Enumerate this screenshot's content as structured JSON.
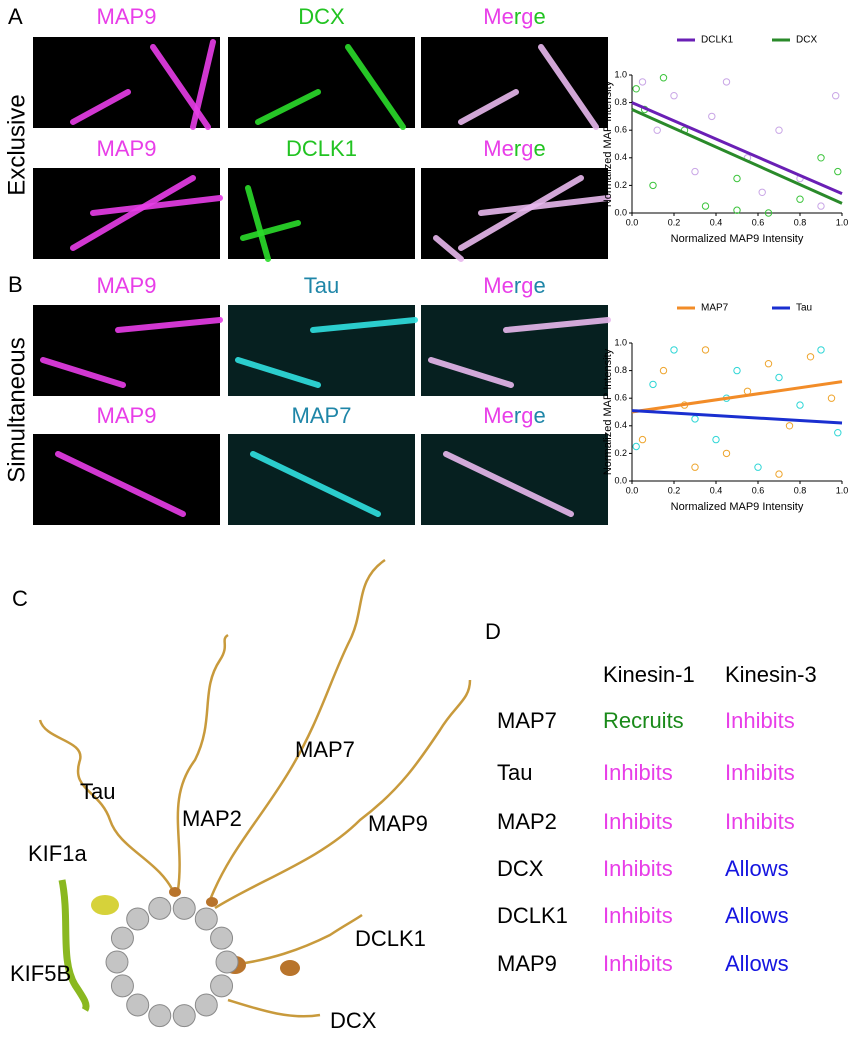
{
  "panel_a": {
    "label": "A",
    "condition": "Exclusive",
    "rows": [
      {
        "labels": [
          "MAP9",
          "DCX",
          "Merge"
        ],
        "colors": [
          "#e83ee8",
          "#22c322"
        ]
      },
      {
        "labels": [
          "MAP9",
          "DCLK1",
          "Merge"
        ],
        "colors": [
          "#e83ee8",
          "#22c322"
        ]
      }
    ]
  },
  "panel_b": {
    "label": "B",
    "condition": "Simultaneous",
    "rows": [
      {
        "labels": [
          "MAP9",
          "Tau",
          "Merge"
        ],
        "colors": [
          "#e83ee8",
          "#1f86a8"
        ]
      },
      {
        "labels": [
          "MAP9",
          "MAP7",
          "Merge"
        ],
        "colors": [
          "#e83ee8",
          "#1f86a8"
        ]
      }
    ]
  },
  "chart_data": [
    {
      "type": "scatter",
      "xlabel": "Normalized MAP9 Intensity",
      "ylabel": "Normalized MAP Intensity",
      "xlim": [
        0,
        1
      ],
      "ylim": [
        0,
        1
      ],
      "xticks": [
        {
          "value": 0,
          "label": "0.0"
        },
        0.2,
        0.4,
        0.6,
        0.8,
        {
          "value": 1,
          "label": "1.0"
        }
      ],
      "yticks": [
        {
          "value": 0,
          "label": "0.0"
        },
        0.2,
        0.4,
        0.6,
        0.8,
        {
          "value": 1,
          "label": "1.0"
        }
      ],
      "legend": "top",
      "series": [
        {
          "name": "DCLK1",
          "color": "#6a1fb5",
          "point_color": "#c9a6e6",
          "x": [
            0.05,
            0.12,
            0.2,
            0.3,
            0.38,
            0.45,
            0.55,
            0.62,
            0.7,
            0.8,
            0.9,
            0.97
          ],
          "values": [
            0.95,
            0.6,
            0.85,
            0.3,
            0.7,
            0.95,
            0.4,
            0.15,
            0.6,
            0.25,
            0.05,
            0.85
          ],
          "trend": [
            0.8,
            0.14
          ]
        },
        {
          "name": "DCX",
          "color": "#2a8a2a",
          "point_color": "#3cc43c",
          "x": [
            0.02,
            0.06,
            0.1,
            0.15,
            0.25,
            0.35,
            0.5,
            0.65,
            0.8,
            0.9,
            0.98,
            0.5
          ],
          "values": [
            0.9,
            0.75,
            0.2,
            0.98,
            0.6,
            0.05,
            0.25,
            0.0,
            0.1,
            0.4,
            0.3,
            0.02
          ],
          "trend": [
            0.75,
            0.07
          ]
        }
      ]
    },
    {
      "type": "scatter",
      "xlabel": "Normalized MAP9 Intensity",
      "ylabel": "Normalized MAP Intensity",
      "xlim": [
        0,
        1
      ],
      "ylim": [
        0,
        1
      ],
      "xticks": [
        {
          "value": 0,
          "label": "0.0"
        },
        0.2,
        0.4,
        0.6,
        0.8,
        {
          "value": 1,
          "label": "1.0"
        }
      ],
      "yticks": [
        {
          "value": 0,
          "label": "0.0"
        },
        0.2,
        0.4,
        0.6,
        0.8,
        {
          "value": 1,
          "label": "1.0"
        }
      ],
      "legend": "top",
      "series": [
        {
          "name": "MAP7",
          "color": "#f28c28",
          "point_color": "#eea52e",
          "x": [
            0.05,
            0.15,
            0.25,
            0.35,
            0.45,
            0.55,
            0.65,
            0.75,
            0.85,
            0.95,
            0.3,
            0.7
          ],
          "values": [
            0.3,
            0.8,
            0.55,
            0.95,
            0.2,
            0.65,
            0.85,
            0.4,
            0.9,
            0.6,
            0.1,
            0.05
          ],
          "trend": [
            0.5,
            0.72
          ]
        },
        {
          "name": "Tau",
          "color": "#1a2fd0",
          "point_color": "#2fd6d6",
          "x": [
            0.02,
            0.1,
            0.2,
            0.4,
            0.5,
            0.6,
            0.8,
            0.9,
            0.98,
            0.3,
            0.7,
            0.45
          ],
          "values": [
            0.25,
            0.7,
            0.95,
            0.3,
            0.8,
            0.1,
            0.55,
            0.95,
            0.35,
            0.45,
            0.75,
            0.6
          ],
          "trend": [
            0.51,
            0.42
          ]
        }
      ]
    }
  ],
  "panel_c": {
    "label": "C",
    "labels": [
      "Tau",
      "MAP2",
      "MAP7",
      "MAP9",
      "KIF1a",
      "KIF5B",
      "DCLK1",
      "DCX"
    ]
  },
  "panel_d": {
    "label": "D",
    "columns": [
      "Kinesin-1",
      "Kinesin-3"
    ],
    "rows": [
      {
        "name": "MAP7",
        "cells": [
          "Recruits",
          "Inhibits"
        ]
      },
      {
        "name": "Tau",
        "cells": [
          "Inhibits",
          "Inhibits"
        ]
      },
      {
        "name": "MAP2",
        "cells": [
          "Inhibits",
          "Inhibits"
        ]
      },
      {
        "name": "DCX",
        "cells": [
          "Inhibits",
          "Allows"
        ]
      },
      {
        "name": "DCLK1",
        "cells": [
          "Inhibits",
          "Allows"
        ]
      },
      {
        "name": "MAP9",
        "cells": [
          "Inhibits",
          "Allows"
        ]
      }
    ],
    "colors": {
      "Recruits": "#1a8a1a",
      "Inhibits": "#e83ee8",
      "Allows": "#1515e0"
    }
  }
}
